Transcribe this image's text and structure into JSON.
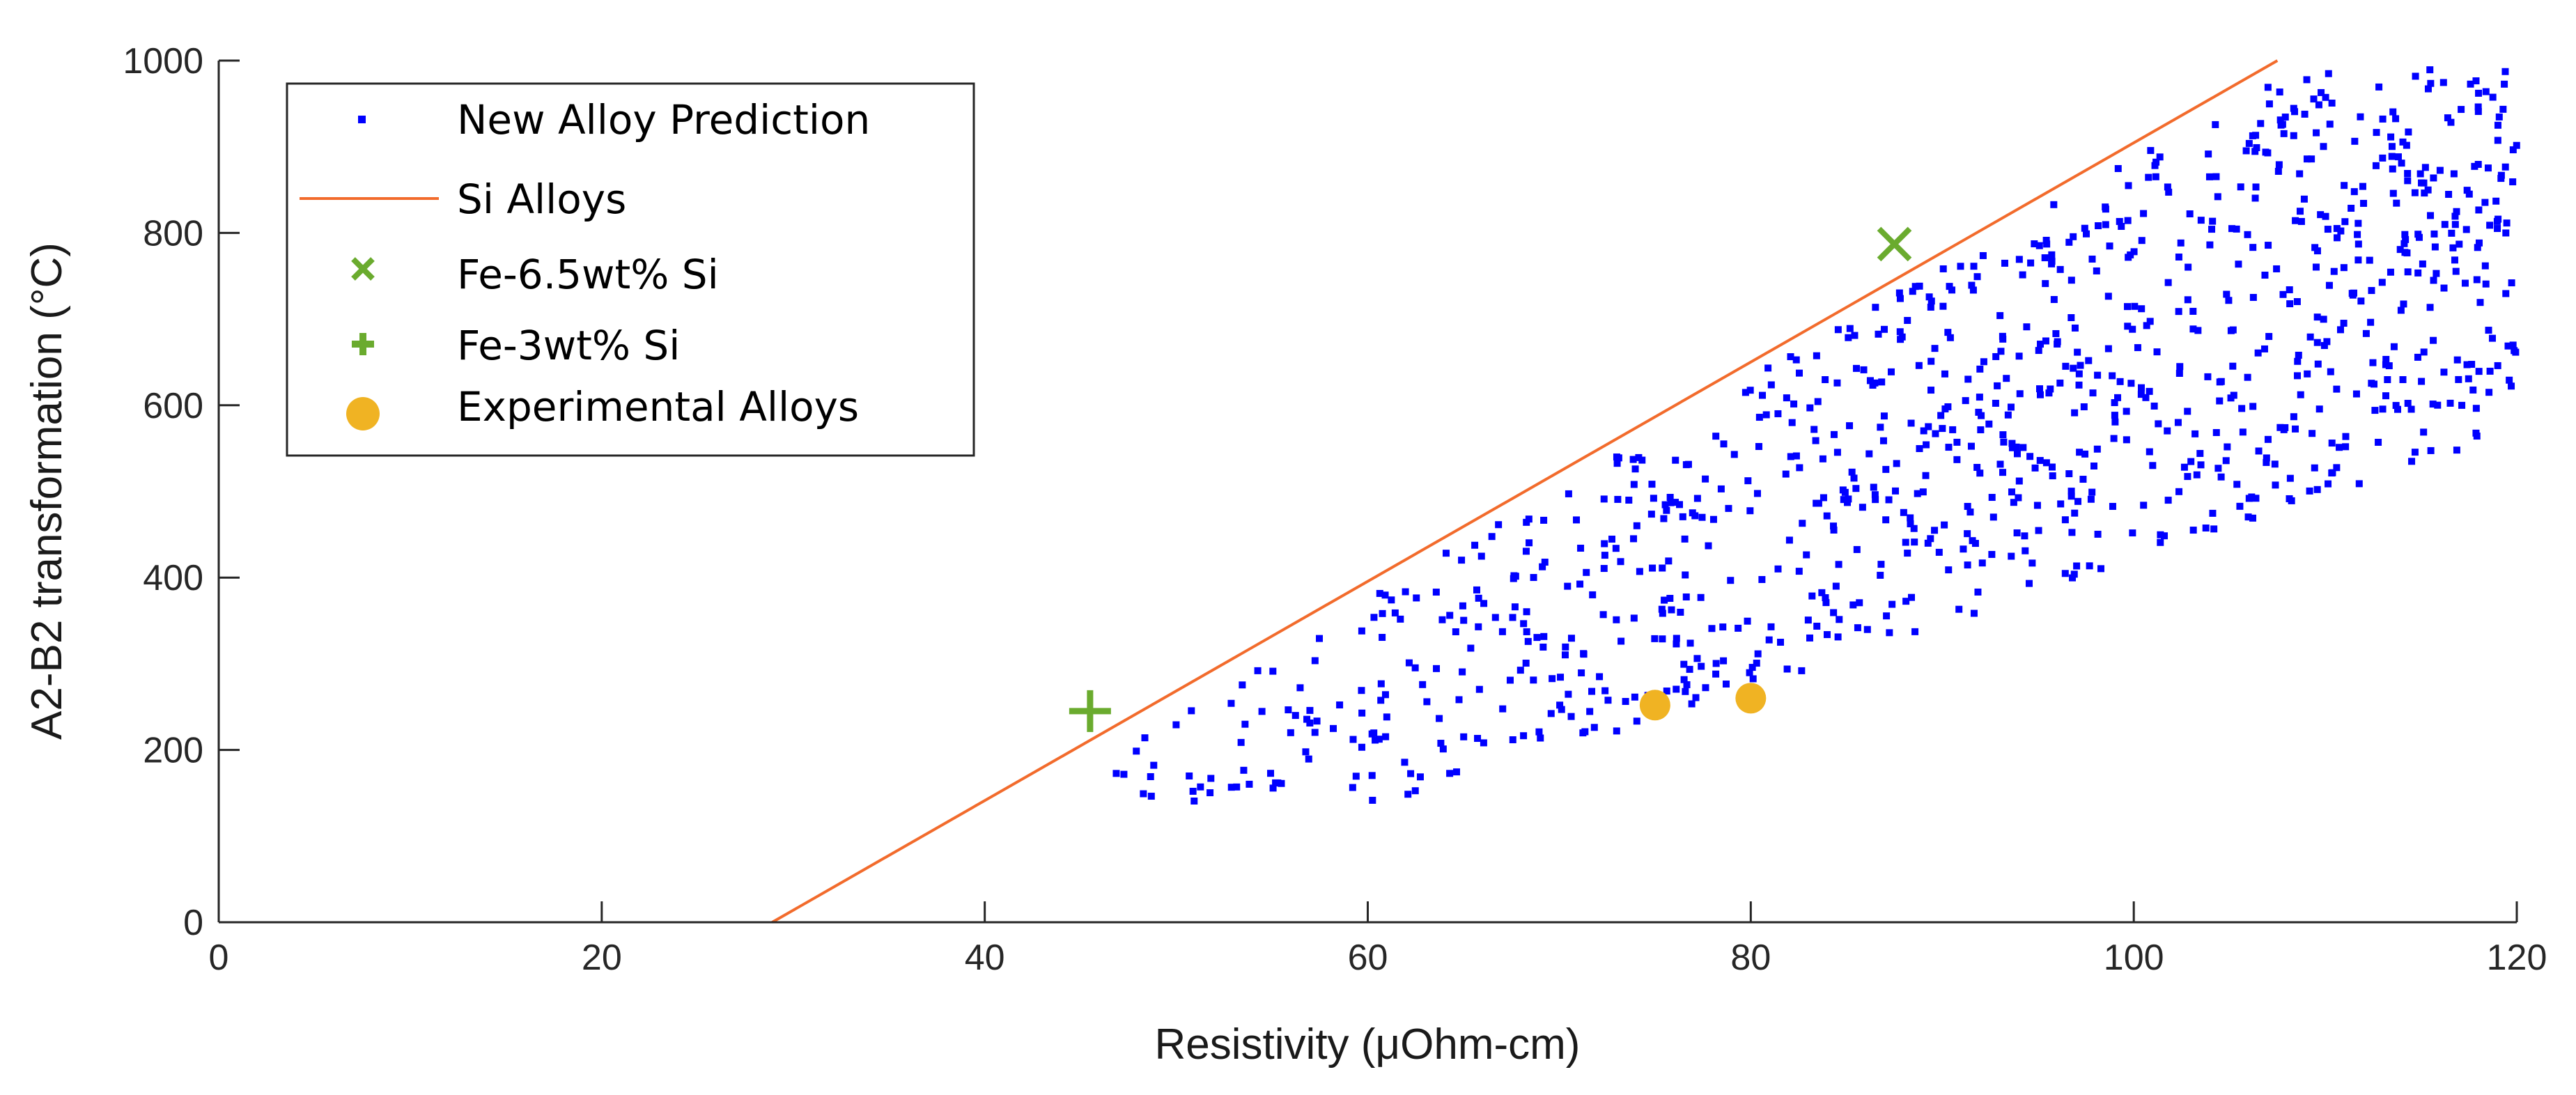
{
  "chart_data": {
    "type": "scatter",
    "title": "",
    "xlabel": "Resistivity (μOhm-cm)",
    "ylabel": "A2-B2 transformation (°C)",
    "xlim": [
      0,
      120
    ],
    "ylim": [
      0,
      1000
    ],
    "xticks": [
      0,
      20,
      40,
      60,
      80,
      100,
      120
    ],
    "yticks": [
      0,
      200,
      400,
      600,
      800,
      1000
    ],
    "grid": false,
    "legend_position": "top-left",
    "colors": {
      "prediction": "#0000ff",
      "si_line": "#f26b2c",
      "fe65": "#6aab2e",
      "fe3": "#6aab2e",
      "experimental": "#f0b323"
    },
    "series": [
      {
        "name": "New Alloy Prediction",
        "kind": "scatter",
        "marker": "square",
        "point_count": 1000,
        "note": "dense cloud of predicted alloys between x≈46 and x≈120, y≈140 to y≈990, bounded above by the Si Alloys line",
        "upper_bound_line": {
          "x": [
            28.9,
            107.5
          ],
          "y": [
            0,
            1000
          ]
        },
        "lower_bound_line": {
          "x": [
            53,
            120
          ],
          "y": [
            140,
            640
          ]
        }
      },
      {
        "name": "Si Alloys",
        "kind": "line",
        "x": [
          28.9,
          107.5
        ],
        "y": [
          0,
          1000
        ]
      },
      {
        "name": "Fe-6.5wt% Si",
        "kind": "marker",
        "marker": "x",
        "x": [
          87.5
        ],
        "y": [
          787
        ]
      },
      {
        "name": "Fe-3wt% Si",
        "kind": "marker",
        "marker": "plus",
        "x": [
          45.5
        ],
        "y": [
          245
        ]
      },
      {
        "name": "Experimental Alloys",
        "kind": "marker",
        "marker": "circle",
        "x": [
          75,
          80
        ],
        "y": [
          252,
          260
        ]
      }
    ]
  }
}
